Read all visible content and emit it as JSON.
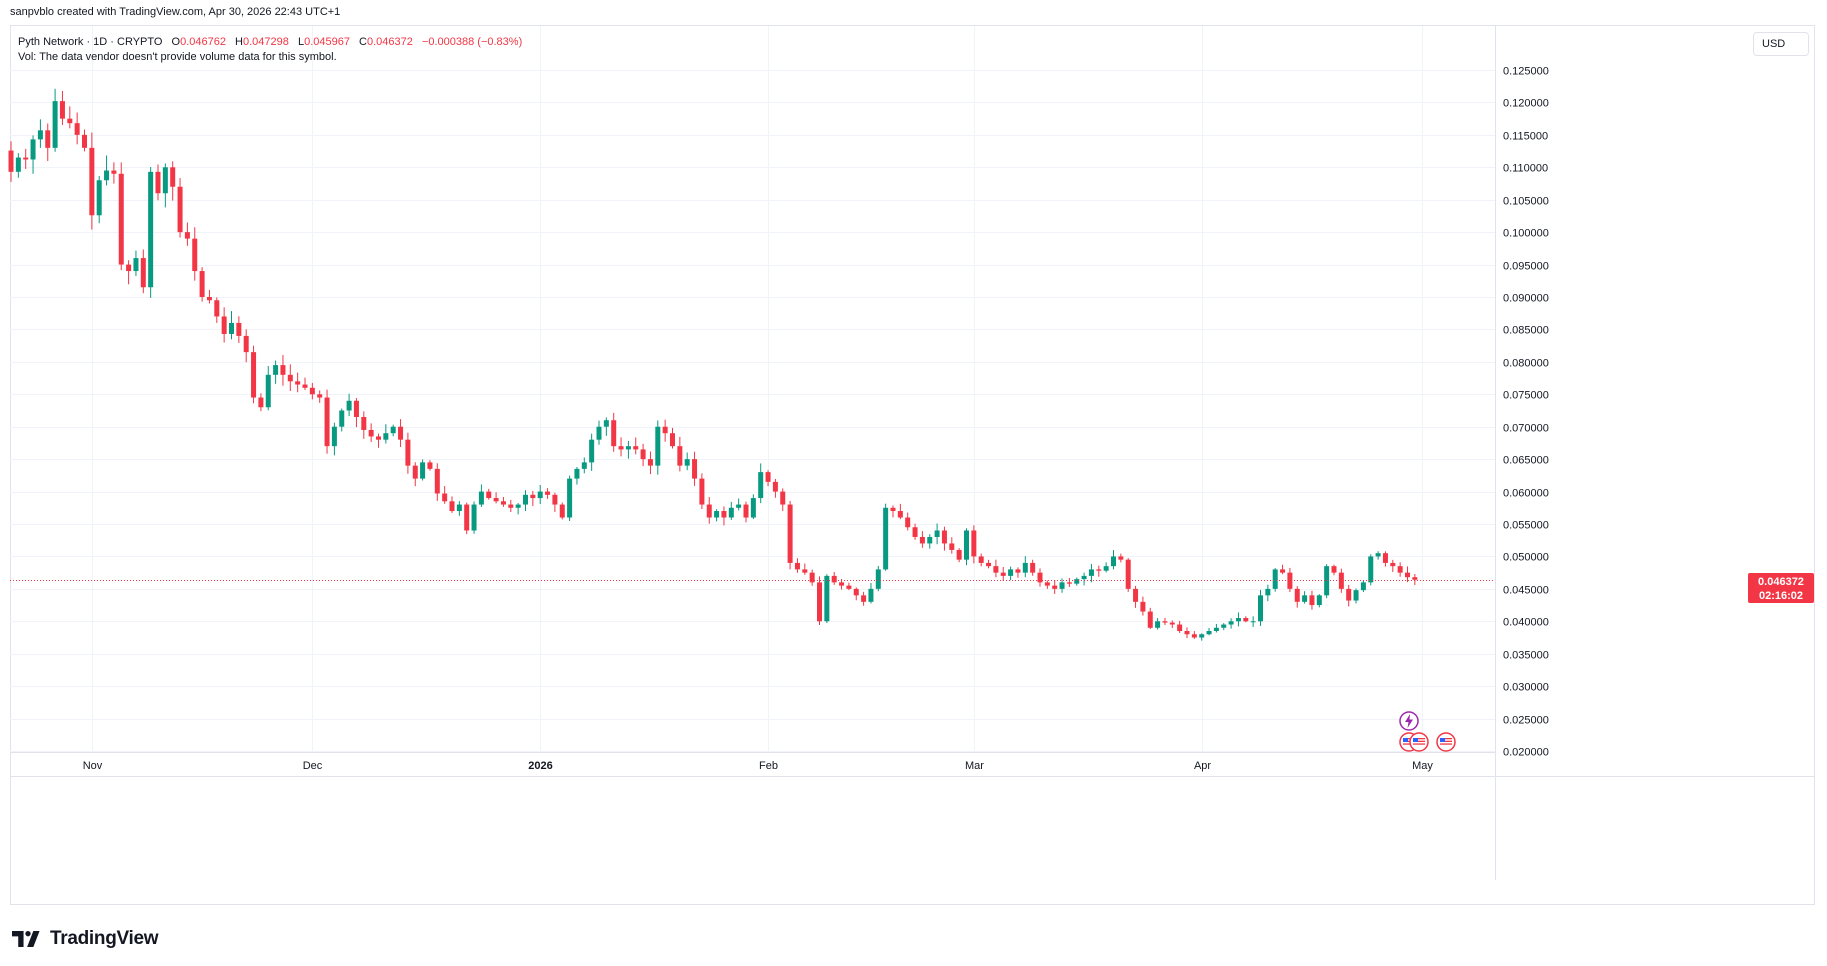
{
  "header": {
    "credit": "sanpvblo created with TradingView.com, Apr 30, 2026 22:43 UTC+1"
  },
  "legend": {
    "symbol": "Pyth Network · 1D · CRYPTO",
    "o_label": "O",
    "o_value": "0.046762",
    "h_label": "H",
    "h_value": "0.047298",
    "l_label": "L",
    "l_value": "0.045967",
    "c_label": "C",
    "c_value": "0.046372",
    "change": "−0.000388 (−0.83%)",
    "vol_note": "Vol: The data vendor doesn't provide volume data for this symbol."
  },
  "currency_button": "USD",
  "last_price": {
    "value": "0.046372",
    "countdown": "02:16:02"
  },
  "branding": {
    "logo_text": "TradingView"
  },
  "colors": {
    "up": "#089981",
    "down": "#f23645",
    "grid": "#f0f3fa",
    "text": "#131722"
  },
  "chart_data": {
    "type": "candlestick",
    "title": "",
    "y_ticks": [
      "0.125000",
      "0.120000",
      "0.115000",
      "0.110000",
      "0.105000",
      "0.100000",
      "0.095000",
      "0.090000",
      "0.085000",
      "0.080000",
      "0.075000",
      "0.070000",
      "0.065000",
      "0.060000",
      "0.055000",
      "0.050000",
      "0.045000",
      "0.040000",
      "0.035000",
      "0.030000",
      "0.025000",
      "0.020000"
    ],
    "ylim": [
      0.0197,
      0.129
    ],
    "x_ticks": [
      {
        "label": "Nov",
        "date": "2025-11-01",
        "bold": false
      },
      {
        "label": "Dec",
        "date": "2025-12-01",
        "bold": false
      },
      {
        "label": "2026",
        "date": "2026-01-01",
        "bold": true
      },
      {
        "label": "Feb",
        "date": "2026-02-01",
        "bold": false
      },
      {
        "label": "Mar",
        "date": "2026-03-01",
        "bold": false
      },
      {
        "label": "Apr",
        "date": "2026-04-01",
        "bold": false
      },
      {
        "label": "May",
        "date": "2026-05-01",
        "bold": false
      }
    ],
    "first_date": "2025-10-21",
    "last_date": "2026-04-30",
    "close_anchors": [
      [
        0,
        0.1093
      ],
      [
        1,
        0.1115
      ],
      [
        2,
        0.1112
      ],
      [
        3,
        0.1143
      ],
      [
        4,
        0.1157
      ],
      [
        5,
        0.113
      ],
      [
        6,
        0.1202
      ],
      [
        7,
        0.1175
      ],
      [
        8,
        0.1168
      ],
      [
        9,
        0.115
      ],
      [
        10,
        0.113
      ],
      [
        11,
        0.1026
      ],
      [
        12,
        0.108
      ],
      [
        13,
        0.1095
      ],
      [
        14,
        0.109
      ],
      [
        15,
        0.095
      ],
      [
        16,
        0.094
      ],
      [
        17,
        0.096
      ],
      [
        18,
        0.0915
      ],
      [
        19,
        0.1093
      ],
      [
        20,
        0.106
      ],
      [
        21,
        0.11
      ],
      [
        22,
        0.107
      ],
      [
        23,
        0.1
      ],
      [
        24,
        0.099
      ],
      [
        25,
        0.094
      ],
      [
        26,
        0.09
      ],
      [
        27,
        0.0895
      ],
      [
        28,
        0.087
      ],
      [
        29,
        0.0843
      ],
      [
        30,
        0.086
      ],
      [
        31,
        0.084
      ],
      [
        32,
        0.0815
      ],
      [
        33,
        0.0745
      ],
      [
        34,
        0.073
      ],
      [
        35,
        0.078
      ],
      [
        36,
        0.0795
      ],
      [
        37,
        0.078
      ],
      [
        38,
        0.077
      ],
      [
        39,
        0.0765
      ],
      [
        40,
        0.076
      ],
      [
        41,
        0.075
      ],
      [
        42,
        0.0745
      ],
      [
        43,
        0.067
      ],
      [
        44,
        0.07
      ],
      [
        45,
        0.0725
      ],
      [
        46,
        0.074
      ],
      [
        47,
        0.0715
      ],
      [
        48,
        0.0695
      ],
      [
        49,
        0.0685
      ],
      [
        50,
        0.068
      ],
      [
        51,
        0.069
      ],
      [
        52,
        0.07
      ],
      [
        53,
        0.068
      ],
      [
        54,
        0.064
      ],
      [
        55,
        0.062
      ],
      [
        56,
        0.0645
      ],
      [
        57,
        0.0635
      ],
      [
        58,
        0.0597
      ],
      [
        59,
        0.0585
      ],
      [
        60,
        0.057
      ],
      [
        61,
        0.058
      ],
      [
        62,
        0.054
      ],
      [
        63,
        0.058
      ],
      [
        64,
        0.06
      ],
      [
        65,
        0.059
      ],
      [
        66,
        0.0585
      ],
      [
        67,
        0.058
      ],
      [
        68,
        0.0575
      ],
      [
        69,
        0.058
      ],
      [
        70,
        0.0595
      ],
      [
        71,
        0.059
      ],
      [
        72,
        0.06
      ],
      [
        73,
        0.0595
      ],
      [
        74,
        0.058
      ],
      [
        75,
        0.056
      ],
      [
        76,
        0.062
      ],
      [
        77,
        0.0635
      ],
      [
        78,
        0.0645
      ],
      [
        79,
        0.068
      ],
      [
        80,
        0.07
      ],
      [
        81,
        0.071
      ],
      [
        82,
        0.067
      ],
      [
        83,
        0.0665
      ],
      [
        84,
        0.067
      ],
      [
        85,
        0.0665
      ],
      [
        86,
        0.065
      ],
      [
        87,
        0.064
      ],
      [
        88,
        0.07
      ],
      [
        89,
        0.069
      ],
      [
        90,
        0.067
      ],
      [
        91,
        0.064
      ],
      [
        92,
        0.065
      ],
      [
        93,
        0.062
      ],
      [
        94,
        0.058
      ],
      [
        95,
        0.056
      ],
      [
        96,
        0.057
      ],
      [
        97,
        0.056
      ],
      [
        98,
        0.0575
      ],
      [
        99,
        0.058
      ],
      [
        100,
        0.056
      ],
      [
        101,
        0.059
      ],
      [
        102,
        0.063
      ],
      [
        103,
        0.0615
      ],
      [
        104,
        0.06
      ],
      [
        105,
        0.058
      ],
      [
        106,
        0.049
      ],
      [
        107,
        0.048
      ],
      [
        108,
        0.0475
      ],
      [
        109,
        0.046
      ],
      [
        110,
        0.04
      ],
      [
        111,
        0.047
      ],
      [
        112,
        0.046
      ],
      [
        113,
        0.0455
      ],
      [
        114,
        0.045
      ],
      [
        115,
        0.044
      ],
      [
        116,
        0.043
      ],
      [
        117,
        0.045
      ],
      [
        118,
        0.048
      ],
      [
        119,
        0.0575
      ],
      [
        120,
        0.057
      ],
      [
        121,
        0.056
      ],
      [
        122,
        0.0545
      ],
      [
        123,
        0.053
      ],
      [
        124,
        0.052
      ],
      [
        125,
        0.053
      ],
      [
        126,
        0.054
      ],
      [
        127,
        0.052
      ],
      [
        128,
        0.051
      ],
      [
        129,
        0.0495
      ],
      [
        130,
        0.054
      ],
      [
        131,
        0.05
      ],
      [
        132,
        0.049
      ],
      [
        133,
        0.0485
      ],
      [
        134,
        0.0475
      ],
      [
        135,
        0.047
      ],
      [
        136,
        0.048
      ],
      [
        137,
        0.0475
      ],
      [
        138,
        0.049
      ],
      [
        139,
        0.0475
      ],
      [
        140,
        0.046
      ],
      [
        141,
        0.0455
      ],
      [
        142,
        0.045
      ],
      [
        143,
        0.046
      ],
      [
        144,
        0.0458
      ],
      [
        145,
        0.0465
      ],
      [
        146,
        0.047
      ],
      [
        147,
        0.048
      ],
      [
        148,
        0.0478
      ],
      [
        149,
        0.0485
      ],
      [
        150,
        0.05
      ],
      [
        151,
        0.0495
      ],
      [
        152,
        0.045
      ],
      [
        153,
        0.043
      ],
      [
        154,
        0.0415
      ],
      [
        155,
        0.039
      ],
      [
        156,
        0.04
      ],
      [
        157,
        0.0398
      ],
      [
        158,
        0.0395
      ],
      [
        159,
        0.0385
      ],
      [
        160,
        0.038
      ],
      [
        161,
        0.0375
      ],
      [
        162,
        0.038
      ],
      [
        163,
        0.0385
      ],
      [
        164,
        0.039
      ],
      [
        165,
        0.0395
      ],
      [
        166,
        0.04
      ],
      [
        167,
        0.0405
      ],
      [
        168,
        0.04
      ],
      [
        169,
        0.04
      ],
      [
        170,
        0.044
      ],
      [
        171,
        0.045
      ],
      [
        172,
        0.048
      ],
      [
        173,
        0.0475
      ],
      [
        174,
        0.045
      ],
      [
        175,
        0.043
      ],
      [
        176,
        0.044
      ],
      [
        177,
        0.0425
      ],
      [
        178,
        0.044
      ],
      [
        179,
        0.0485
      ],
      [
        180,
        0.0475
      ],
      [
        181,
        0.045
      ],
      [
        182,
        0.0432
      ],
      [
        183,
        0.0448
      ],
      [
        184,
        0.046
      ],
      [
        185,
        0.05
      ],
      [
        186,
        0.0505
      ],
      [
        187,
        0.049
      ],
      [
        188,
        0.0485
      ],
      [
        189,
        0.0475
      ],
      [
        190,
        0.0468
      ],
      [
        191,
        0.0464
      ]
    ]
  }
}
